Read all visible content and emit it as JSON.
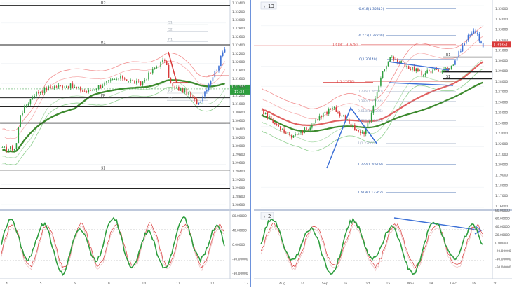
{
  "colors": {
    "up": "#2e9e3e",
    "down": "#d93a3a",
    "blue": "#3b6fd6",
    "ma": "#3d8a2e",
    "maRed": "#e06060",
    "bandRed": "#f28d8d",
    "bandGreen": "#8fcf8f",
    "grid": "#eef1f5",
    "divider": "#3d6fd1"
  },
  "left_panel": {
    "price_axis": [
      "1.33400",
      "1.33200",
      "1.33000",
      "1.32800",
      "1.32600",
      "1.32400",
      "1.32200",
      "1.32000",
      "1.31800",
      "1.31600",
      "1.31400",
      "1.31200",
      "1.31000",
      "1.30800",
      "1.30600",
      "1.30400",
      "1.30200",
      "1.30000",
      "1.29800",
      "1.29600",
      "1.29400",
      "1.29200",
      "1.29000",
      "1.28800",
      "1.28600"
    ],
    "time_axis": [
      "4",
      "5",
      "6",
      "9",
      "10",
      "11",
      "12",
      "13"
    ],
    "level_labels": [
      "R2",
      "R1",
      "PP",
      "S1"
    ],
    "faint_labels": [
      "S1",
      "S2",
      "R1",
      "R2",
      "S3"
    ],
    "price_tag": "1.31351",
    "price_tag2": "17:34",
    "osc_axis": [
      "80.00000",
      "40.00000",
      "0.00000",
      "-40.00000",
      "-80.00000"
    ]
  },
  "right_panel": {
    "header": "13",
    "price_axis": [
      "1.35000",
      "1.34000",
      "1.33000",
      "1.32000",
      "1.31000",
      "1.30000",
      "1.29000",
      "1.28000",
      "1.27000",
      "1.26000",
      "1.25000",
      "1.24000",
      "1.23000",
      "1.22000",
      "1.21000",
      "1.20000",
      "1.19000",
      "1.18000",
      "1.17000",
      "1.16000"
    ],
    "time_axis": [
      "Aug",
      "14",
      "Sep",
      "16",
      "Oct",
      "15",
      "Nov",
      "18",
      "Dec",
      "16",
      "20"
    ],
    "fib_labels": [
      "-0.618(1.35815)",
      "-0.272(1.32200)",
      "1.618(1.31628)",
      "0(1.30149)",
      "1(1.27970)",
      "0.236(1.26500)",
      "0.382(1.25644)",
      "0.618(1.25285)",
      "0.786(1.23980)",
      "1(1.22600)",
      "1.272(1.20808)",
      "1.618(1.17262)"
    ],
    "level_labels": [
      "R1",
      "PP",
      "S1"
    ],
    "price_tag": "1.31351",
    "osc_header": "2",
    "osc_axis": [
      "80.00000",
      "60.00000",
      "40.00000",
      "20.00000",
      "0.00000",
      "-20.00000",
      "-40.00000",
      "-60.00000"
    ]
  },
  "chart_data": [
    {
      "type": "line",
      "title": "",
      "xlabel": "",
      "ylabel": "",
      "x": [
        "4",
        "5",
        "6",
        "9",
        "10",
        "11",
        "12",
        "13"
      ],
      "ylim": [
        1.286,
        1.334
      ],
      "series": [
        {
          "values": [
            1.299,
            1.311,
            1.315,
            1.314,
            1.316,
            1.316,
            1.318,
            1.324
          ]
        }
      ],
      "levels": {
        "R2": 1.3334,
        "R1": 1.324,
        "PP": 1.3114,
        "S1": 1.2942
      },
      "current_price": 1.31351
    },
    {
      "type": "line",
      "title": "",
      "xlabel": "",
      "ylabel": "",
      "x": [
        "Aug",
        "14",
        "Sep",
        "16",
        "Oct",
        "15",
        "Nov",
        "18",
        "Dec",
        "16",
        "20"
      ],
      "ylim": [
        1.16,
        1.35
      ],
      "series": [
        {
          "values": [
            1.255,
            1.228,
            1.238,
            1.255,
            1.225,
            1.3,
            1.285,
            1.29,
            1.3,
            1.327,
            1.313
          ]
        }
      ],
      "levels": {
        "R1": 1.3015,
        "PP": 1.2875,
        "S1": 1.281
      },
      "current_price": 1.31351
    }
  ]
}
